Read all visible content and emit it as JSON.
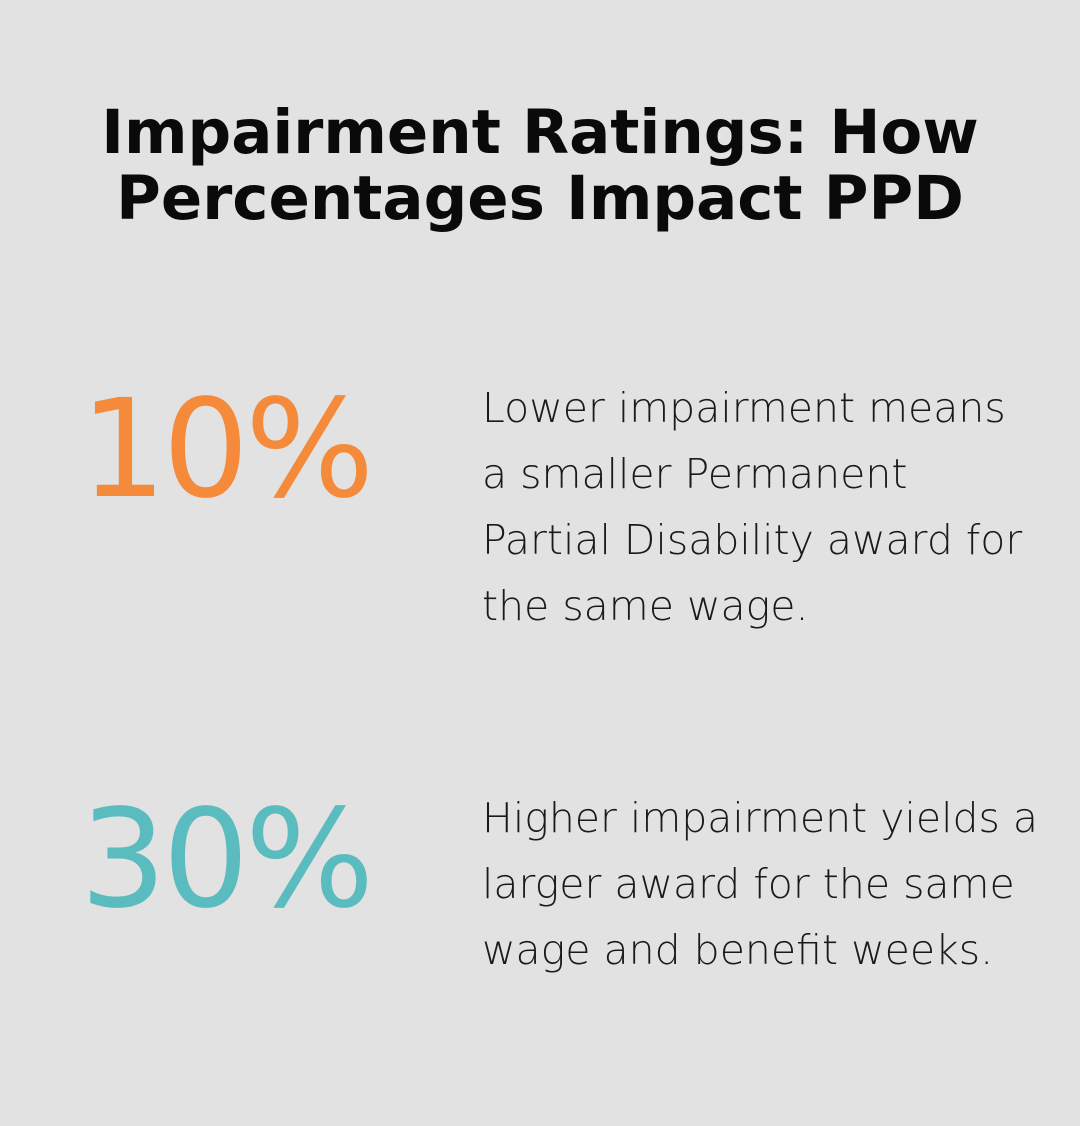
{
  "title": "Impairment Ratings: How Percentages Impact PPD",
  "stats": [
    {
      "value": "10%",
      "color": "#f58a3b",
      "description": "Lower impairment means a smaller Permanent Partial Disability award for the same wage."
    },
    {
      "value": "30%",
      "color": "#5bbcbf",
      "description": "Higher impairment yields a larger award for the same wage and benefit weeks."
    }
  ]
}
